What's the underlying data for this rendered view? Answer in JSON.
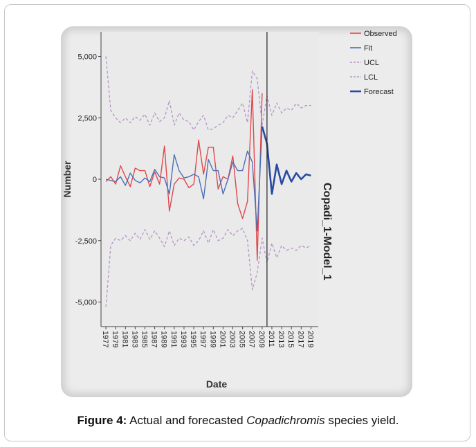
{
  "caption": {
    "label": "Figure 4:",
    "text_before": " Actual and forecasted ",
    "italic": "Copadichromis",
    "text_after": " species yield."
  },
  "colors": {
    "observed": "#e0474c",
    "fit": "#4a6fb5",
    "ucl": "#b593c9",
    "lcl": "#b593c9",
    "forecast": "#2a4aa0",
    "plot_bg": "#eaeaea"
  },
  "chart_data": {
    "type": "line",
    "title": "",
    "model_label": "Copadi_1-Model_1",
    "xlabel": "Date",
    "ylabel": "Number",
    "ylim": [
      -6000,
      6000
    ],
    "yticks": [
      5000,
      2500,
      0,
      -2500,
      -5000
    ],
    "ytick_labels": [
      "5,000",
      "2,500",
      "0",
      "-2,500",
      "-5,000"
    ],
    "xlim": [
      1976,
      2020.5
    ],
    "xticks": [
      1977,
      1979,
      1981,
      1983,
      1985,
      1987,
      1989,
      1991,
      1993,
      1995,
      1997,
      1999,
      2001,
      2003,
      2005,
      2007,
      2009,
      2011,
      2013,
      2015,
      2017,
      2019
    ],
    "forecast_start": 2010,
    "legend_position": "top-right",
    "legend": [
      "Observed",
      "Fit",
      "UCL",
      "LCL",
      "Forecast"
    ],
    "series": [
      {
        "name": "Observed",
        "x": [
          1977,
          1978,
          1979,
          1980,
          1981,
          1982,
          1983,
          1984,
          1985,
          1986,
          1987,
          1988,
          1989,
          1990,
          1991,
          1992,
          1993,
          1994,
          1995,
          1996,
          1997,
          1998,
          1999,
          2000,
          2001,
          2002,
          2003,
          2004,
          2005,
          2006,
          2007,
          2008,
          2009
        ],
        "y": [
          -100,
          100,
          -200,
          550,
          100,
          -300,
          450,
          350,
          350,
          -300,
          300,
          -200,
          1350,
          -1300,
          -200,
          50,
          0,
          -350,
          -200,
          1600,
          200,
          1300,
          1300,
          -400,
          100,
          0,
          950,
          -1000,
          -1600,
          -900,
          3650,
          -3300,
          3500
        ]
      },
      {
        "name": "Fit",
        "x": [
          1977,
          1978,
          1979,
          1980,
          1981,
          1982,
          1983,
          1984,
          1985,
          1986,
          1987,
          1988,
          1989,
          1990,
          1991,
          1992,
          1993,
          1994,
          1995,
          1996,
          1997,
          1998,
          1999,
          2000,
          2001,
          2002,
          2003,
          2004,
          2005,
          2006,
          2007,
          2008,
          2009
        ],
        "y": [
          0,
          -50,
          -100,
          100,
          -250,
          250,
          -50,
          -150,
          50,
          -100,
          400,
          100,
          50,
          -600,
          1000,
          350,
          50,
          100,
          200,
          100,
          -800,
          800,
          350,
          350,
          -600,
          0,
          700,
          350,
          350,
          1150,
          700,
          -2100,
          2150
        ]
      },
      {
        "name": "UCL",
        "x": [
          1977,
          1978,
          1979,
          1980,
          1981,
          1982,
          1983,
          1984,
          1985,
          1986,
          1987,
          1988,
          1989,
          1990,
          1991,
          1992,
          1993,
          1994,
          1995,
          1996,
          1997,
          1998,
          1999,
          2000,
          2001,
          2002,
          2003,
          2004,
          2005,
          2006,
          2007,
          2008,
          2009,
          2010,
          2011,
          2012,
          2013,
          2014,
          2015,
          2016,
          2017,
          2018,
          2019
        ],
        "y": [
          5000,
          2800,
          2500,
          2300,
          2500,
          2300,
          2550,
          2400,
          2650,
          2200,
          2700,
          2350,
          2500,
          3200,
          2200,
          2700,
          2400,
          2350,
          2000,
          2350,
          2600,
          2000,
          2050,
          2200,
          2300,
          2600,
          2500,
          2800,
          3100,
          2300,
          4400,
          4100,
          2200,
          3400,
          2600,
          3100,
          2700,
          2900,
          2800,
          3100,
          2900,
          3000,
          3000
        ]
      },
      {
        "name": "LCL",
        "x": [
          1977,
          1978,
          1979,
          1980,
          1981,
          1982,
          1983,
          1984,
          1985,
          1986,
          1987,
          1988,
          1989,
          1990,
          1991,
          1992,
          1993,
          1994,
          1995,
          1996,
          1997,
          1998,
          1999,
          2000,
          2001,
          2002,
          2003,
          2004,
          2005,
          2006,
          2007,
          2008,
          2009,
          2010,
          2011,
          2012,
          2013,
          2014,
          2015,
          2016,
          2017,
          2018,
          2019
        ],
        "y": [
          -5200,
          -2700,
          -2400,
          -2500,
          -2300,
          -2500,
          -2200,
          -2450,
          -2050,
          -2450,
          -2100,
          -2400,
          -2750,
          -2100,
          -2700,
          -2400,
          -2500,
          -2350,
          -2700,
          -2500,
          -2100,
          -2600,
          -2050,
          -2500,
          -2400,
          -2050,
          -2300,
          -2100,
          -2000,
          -2500,
          -4500,
          -3800,
          -2400,
          -3400,
          -2600,
          -3200,
          -2700,
          -2900,
          -2800,
          -2900,
          -2700,
          -2800,
          -2700
        ]
      },
      {
        "name": "Forecast",
        "x": [
          2009,
          2010,
          2011,
          2012,
          2013,
          2014,
          2015,
          2016,
          2017,
          2018,
          2019
        ],
        "y": [
          2150,
          1450,
          -600,
          600,
          -200,
          350,
          -100,
          250,
          0,
          200,
          150
        ]
      }
    ]
  }
}
